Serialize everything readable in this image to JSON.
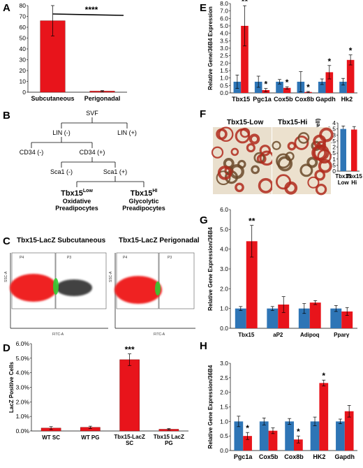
{
  "colors": {
    "blue": "#2e75b6",
    "red": "#e8141b",
    "dark_red": "#8b1010",
    "gate_green": "#33cc33"
  },
  "panels": {
    "A": {
      "label": "A"
    },
    "B": {
      "label": "B",
      "tree": {
        "root": "SVF",
        "lin_neg": "LIN (-)",
        "lin_pos": "LIN (+)",
        "cd34_neg": "CD34 (-)",
        "cd34_pos": "CD34 (+)",
        "sca1_neg": "Sca1 (-)",
        "sca1_pos": "Sca1 (+)",
        "low": {
          "base": "Tbx15",
          "sup": "Low",
          "line1": "Oxidative",
          "line2": "Preadipocytes"
        },
        "hi": {
          "base": "Tbx15",
          "sup": "HI",
          "line1": "Glycolytic",
          "line2": "Preadipocytes"
        }
      }
    },
    "C": {
      "label": "C",
      "left_title": "Tbx15-LacZ Subcutaneous",
      "right_title": "Tbx15-LacZ Perigonadal",
      "gate_left": "P4",
      "gate_right": "P3",
      "x_axis": "FITC-A",
      "y_axis": "SSC-A"
    },
    "D": {
      "label": "D"
    },
    "E": {
      "label": "E"
    },
    "F": {
      "label": "F",
      "img_left": "Tbx15-Low",
      "img_right": "Tbx15-Hi"
    },
    "G": {
      "label": "G"
    },
    "H": {
      "label": "H"
    }
  },
  "chart_data": [
    {
      "id": "A",
      "type": "bar",
      "categories": [
        "Subcutaneous",
        "Perigonadal"
      ],
      "values": [
        66,
        1
      ],
      "errors": [
        14,
        0.5
      ],
      "ylim": [
        0,
        80
      ],
      "yticks": [
        0,
        10,
        20,
        30,
        40,
        50,
        60,
        70,
        80
      ],
      "annotation": "****"
    },
    {
      "id": "D",
      "type": "bar",
      "ylabel": "LacZ Positive Cells",
      "categories": [
        "WT SC",
        "WT PG",
        "Tbx15-LacZ SC",
        "Tbx15 LacZ PG"
      ],
      "values": [
        0.2,
        0.25,
        4.9,
        0.12
      ],
      "errors": [
        0.1,
        0.08,
        0.4,
        0.05
      ],
      "ylim": [
        0,
        6
      ],
      "yticks": [
        "0.0%",
        "1.0%",
        "2.0%",
        "3.0%",
        "4.0%",
        "5.0%",
        "6.0%"
      ],
      "annotations": [
        "",
        "",
        "***",
        ""
      ]
    },
    {
      "id": "E",
      "type": "bar",
      "ylabel": "Relative Gene/36B4 Expression",
      "categories": [
        "Tbx15",
        "Pgc1a",
        "Cox5b",
        "Cox8b",
        "Gapdh",
        "Hk2"
      ],
      "series": [
        {
          "values": [
            1.0,
            1.0,
            1.0,
            1.0,
            1.0,
            1.0
          ],
          "errors": [
            0.6,
            0.5,
            0.2,
            0.9,
            0.25,
            0.3
          ]
        },
        {
          "values": [
            6.0,
            0.25,
            0.45,
            0.08,
            1.85,
            2.95
          ],
          "errors": [
            1.8,
            0.15,
            0.1,
            0.05,
            0.6,
            0.45
          ]
        }
      ],
      "ylim": [
        0,
        8
      ],
      "yticks": [
        "0.0",
        "0.5",
        "1.0",
        "1.5",
        "2.0",
        "2.5",
        "3.0",
        "3.5",
        "4.0",
        "5.0",
        "6.0",
        "7.0",
        "8.0"
      ],
      "annotations": [
        "**",
        "*",
        "*",
        "*",
        "*",
        "*"
      ]
    },
    {
      "id": "F",
      "type": "bar",
      "ylabel": "Triglyceride (mg/well)",
      "categories": [
        "Tbx15 Low",
        "Tbx15 Hi"
      ],
      "values": [
        3.5,
        3.45
      ],
      "errors": [
        0.25,
        0.25
      ],
      "ylim": [
        0,
        4
      ],
      "yticks": [
        0,
        0.5,
        1,
        1.5,
        2,
        2.5,
        3,
        3.5,
        4
      ]
    },
    {
      "id": "G",
      "type": "bar",
      "ylabel": "Relative Gene Expression/36B4",
      "categories": [
        "Tbx15",
        "aP2",
        "Adipoq",
        "Pparγ"
      ],
      "series": [
        {
          "values": [
            1.0,
            1.0,
            1.0,
            1.0
          ],
          "errors": [
            0.1,
            0.1,
            0.25,
            0.15
          ]
        },
        {
          "values": [
            4.4,
            1.2,
            1.3,
            0.85
          ],
          "errors": [
            0.8,
            0.4,
            0.1,
            0.2
          ]
        }
      ],
      "ylim": [
        0,
        6
      ],
      "yticks": [
        "0.0",
        "1.0",
        "2.0",
        "3.0",
        "4.0",
        "5.0",
        "6.0"
      ],
      "annotations": [
        "**",
        "",
        "",
        ""
      ]
    },
    {
      "id": "H",
      "type": "bar",
      "ylabel": "Relative Gene Expression/36B4",
      "categories": [
        "Pgc1a",
        "Cox5b",
        "Cox8b",
        "HK2",
        "Gapdh"
      ],
      "series": [
        {
          "values": [
            1.0,
            1.0,
            1.0,
            1.0,
            1.0
          ],
          "errors": [
            0.18,
            0.12,
            0.1,
            0.15,
            0.08
          ]
        },
        {
          "values": [
            0.5,
            0.68,
            0.38,
            2.32,
            1.35
          ],
          "errors": [
            0.12,
            0.1,
            0.12,
            0.1,
            0.2
          ]
        }
      ],
      "ylim": [
        0,
        3
      ],
      "yticks": [
        "0.0",
        "0.5",
        "1.0",
        "1.5",
        "2.0",
        "2.5",
        "3.0"
      ],
      "annotations": [
        "*",
        "",
        "*",
        "*",
        ""
      ]
    }
  ]
}
